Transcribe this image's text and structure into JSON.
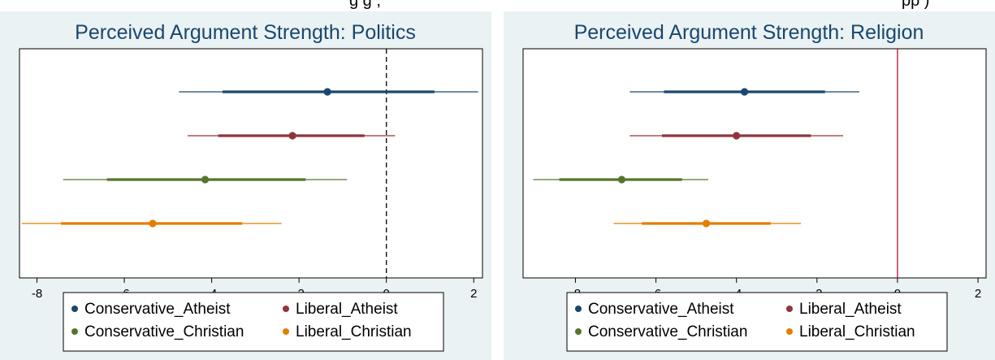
{
  "top_strip": {
    "left_text": "g g   ,",
    "right_text": "pp    )"
  },
  "colors": {
    "panel_bg": "#eaf2f3",
    "plot_bg": "#ffffff",
    "title": "#1a476f",
    "Conservative_Atheist": "#1a476f",
    "Liberal_Atheist": "#90353b",
    "Conservative_Christian": "#55752f",
    "Liberal_Christian": "#e37e00",
    "ref_line_religion": "#c10534"
  },
  "chart_data": [
    {
      "type": "coefficient-plot",
      "title": "Perceived Argument Strength: Politics",
      "xlim": [
        -8.4,
        2.2
      ],
      "xticks": [
        -8,
        -6,
        -4,
        -2,
        0,
        2
      ],
      "grid": false,
      "reference_line": {
        "x": 0,
        "style": "dashed"
      },
      "legend_position": "bottom",
      "legend_columns": 2,
      "series": [
        {
          "name": "Conservative_Atheist",
          "estimate": -1.35,
          "ci_inner": [
            -3.75,
            1.1
          ],
          "ci_outer": [
            -4.75,
            2.1
          ]
        },
        {
          "name": "Liberal_Atheist",
          "estimate": -2.15,
          "ci_inner": [
            -3.85,
            -0.5
          ],
          "ci_outer": [
            -4.55,
            0.2
          ]
        },
        {
          "name": "Conservative_Christian",
          "estimate": -4.15,
          "ci_inner": [
            -6.4,
            -1.85
          ],
          "ci_outer": [
            -7.4,
            -0.9
          ]
        },
        {
          "name": "Liberal_Christian",
          "estimate": -5.35,
          "ci_inner": [
            -7.45,
            -3.3
          ],
          "ci_outer": [
            -8.35,
            -2.4
          ]
        }
      ]
    },
    {
      "type": "coefficient-plot",
      "title": "Perceived Argument Strength: Religion",
      "xlim": [
        -9.3,
        2.2
      ],
      "xticks": [
        -8,
        -6,
        -4,
        -2,
        0,
        2
      ],
      "grid": false,
      "reference_line": {
        "x": 0,
        "style": "solid"
      },
      "legend_position": "bottom",
      "legend_columns": 2,
      "series": [
        {
          "name": "Conservative_Atheist",
          "estimate": -3.8,
          "ci_inner": [
            -5.8,
            -1.8
          ],
          "ci_outer": [
            -6.65,
            -0.95
          ]
        },
        {
          "name": "Liberal_Atheist",
          "estimate": -4.0,
          "ci_inner": [
            -5.85,
            -2.15
          ],
          "ci_outer": [
            -6.65,
            -1.35
          ]
        },
        {
          "name": "Conservative_Christian",
          "estimate": -6.85,
          "ci_inner": [
            -8.4,
            -5.35
          ],
          "ci_outer": [
            -9.05,
            -4.7
          ]
        },
        {
          "name": "Liberal_Christian",
          "estimate": -4.75,
          "ci_inner": [
            -6.35,
            -3.15
          ],
          "ci_outer": [
            -7.05,
            -2.4
          ]
        }
      ]
    }
  ]
}
